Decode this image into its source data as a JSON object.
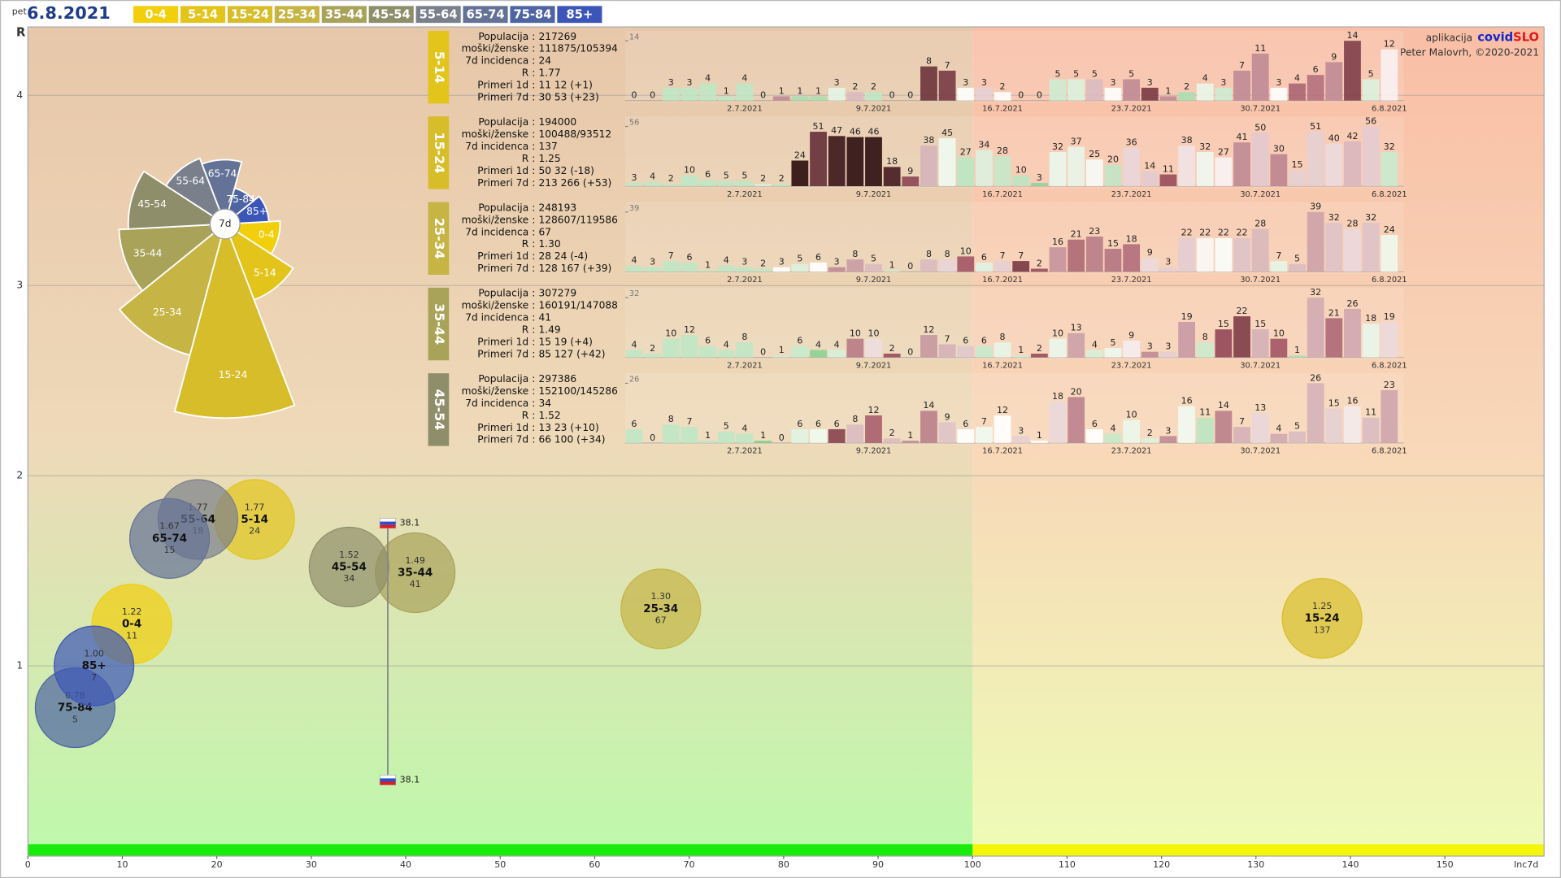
{
  "header": {
    "weekday": "pet",
    "date": "6.8.2021",
    "legend": [
      {
        "name": "0-4",
        "color": "#f2cf0a"
      },
      {
        "name": "5-14",
        "color": "#e3c41a"
      },
      {
        "name": "15-24",
        "color": "#d8bd2a"
      },
      {
        "name": "25-34",
        "color": "#c6b444"
      },
      {
        "name": "35-44",
        "color": "#a9a35a"
      },
      {
        "name": "45-54",
        "color": "#8f8e6a"
      },
      {
        "name": "55-64",
        "color": "#7a7f8c"
      },
      {
        "name": "65-74",
        "color": "#637296"
      },
      {
        "name": "75-84",
        "color": "#4f64a3"
      },
      {
        "name": "85+",
        "color": "#3c55b8"
      }
    ]
  },
  "credit": {
    "prefix": "aplikacija",
    "brand_1": "covid",
    "brand_2": "SLO",
    "author": "Peter Malovrh, ©2020-2021"
  },
  "stat_separator": ":",
  "chart_data": [
    {
      "type": "bubble",
      "xlabel": "Inc7d",
      "ylabel": "R",
      "xlim": [
        0,
        160.5
      ],
      "ylim": [
        0,
        4.36
      ],
      "xticks": [
        0,
        10,
        20,
        30,
        40,
        50,
        60,
        70,
        80,
        90,
        100,
        110,
        120,
        130,
        140,
        150
      ],
      "yticks": [
        1,
        2,
        3,
        4
      ],
      "grid": true,
      "categories": [
        "0-4",
        "5-14",
        "15-24",
        "25-34",
        "35-44",
        "45-54",
        "55-64",
        "65-74",
        "75-84",
        "85+"
      ],
      "x": [
        11,
        24,
        137,
        67,
        41,
        34,
        18,
        15,
        5,
        7
      ],
      "values": [
        1.22,
        1.77,
        1.25,
        1.3,
        1.49,
        1.52,
        1.77,
        1.67,
        0.78,
        1.0
      ],
      "value_labels": [
        "1.22",
        "1.77",
        "1.25",
        "1.30",
        "1.49",
        "1.52",
        "1.77",
        "1.67",
        "0.78",
        "1.00"
      ],
      "colors": [
        "#f2cf0a",
        "#e3c41a",
        "#d8bd2a",
        "#c6b444",
        "#a9a35a",
        "#8f8e6a",
        "#7a7f8c",
        "#637296",
        "#4f64a3",
        "#3c55b8"
      ],
      "reference": {
        "x": 38.1,
        "y": [
          0.4,
          1.75
        ]
      }
    },
    {
      "type": "rose",
      "center_label": "7d",
      "categories": [
        "0-4",
        "5-14",
        "15-24",
        "25-34",
        "35-44",
        "45-54",
        "55-64",
        "65-74",
        "75-84",
        "85+"
      ],
      "values": [
        11,
        24,
        137,
        67,
        41,
        34,
        18,
        15,
        5,
        7
      ],
      "colors": [
        "#f2cf0a",
        "#e3c41a",
        "#d8bd2a",
        "#c6b444",
        "#a9a35a",
        "#8f8e6a",
        "#7a7f8c",
        "#637296",
        "#4f64a3",
        "#3c55b8"
      ]
    },
    {
      "type": "bar",
      "title": "5-14",
      "color": "#e3c41a",
      "ylim": [
        0,
        14
      ],
      "yticks": [
        14
      ],
      "stats": [
        {
          "label": "Populacija",
          "value": "217269"
        },
        {
          "label": "moški/ženske",
          "value": "111875/105394"
        },
        {
          "label": "7d incidenca",
          "value": "24"
        },
        {
          "label": "R",
          "value": "1.77"
        },
        {
          "label": "Primeri 1d",
          "value": "11 12 (+1)"
        },
        {
          "label": "Primeri 7d",
          "value": "30 53 (+23)"
        }
      ],
      "categories": [
        null,
        null,
        null,
        null,
        null,
        null,
        "2.7.2021",
        null,
        null,
        null,
        null,
        null,
        null,
        "9.7.2021",
        null,
        null,
        null,
        null,
        null,
        null,
        "16.7.2021",
        null,
        null,
        null,
        null,
        null,
        null,
        "23.7.2021",
        null,
        null,
        null,
        null,
        null,
        null,
        "30.7.2021",
        null,
        null,
        null,
        null,
        null,
        null,
        "6.8.2021"
      ],
      "values": [
        0,
        0,
        3,
        3,
        4,
        1,
        4,
        0,
        1,
        1,
        1,
        3,
        2,
        2,
        0,
        0,
        8,
        7,
        3,
        3,
        2,
        0,
        0,
        5,
        5,
        5,
        3,
        5,
        3,
        1,
        2,
        4,
        3,
        7,
        11,
        3,
        4,
        6,
        9,
        14,
        5,
        12
      ]
    },
    {
      "type": "bar",
      "title": "15-24",
      "color": "#d8bd2a",
      "ylim": [
        0,
        56
      ],
      "yticks": [
        56
      ],
      "stats": [
        {
          "label": "Populacija",
          "value": "194000"
        },
        {
          "label": "moški/ženske",
          "value": "100488/93512"
        },
        {
          "label": "7d incidenca",
          "value": "137"
        },
        {
          "label": "R",
          "value": "1.25"
        },
        {
          "label": "Primeri 1d",
          "value": "50 32 (-18)"
        },
        {
          "label": "Primeri 7d",
          "value": "213 266 (+53)"
        }
      ],
      "categories": [
        null,
        null,
        null,
        null,
        null,
        null,
        "2.7.2021",
        null,
        null,
        null,
        null,
        null,
        null,
        "9.7.2021",
        null,
        null,
        null,
        null,
        null,
        null,
        "16.7.2021",
        null,
        null,
        null,
        null,
        null,
        null,
        "23.7.2021",
        null,
        null,
        null,
        null,
        null,
        null,
        "30.7.2021",
        null,
        null,
        null,
        null,
        null,
        null,
        "6.8.2021"
      ],
      "values": [
        3,
        4,
        2,
        10,
        6,
        5,
        5,
        2,
        2,
        24,
        51,
        47,
        46,
        46,
        18,
        9,
        38,
        45,
        27,
        34,
        28,
        10,
        3,
        32,
        37,
        25,
        20,
        36,
        14,
        11,
        38,
        32,
        27,
        41,
        50,
        30,
        15,
        51,
        40,
        42,
        56,
        32
      ]
    },
    {
      "type": "bar",
      "title": "25-34",
      "color": "#c6b444",
      "ylim": [
        0,
        39
      ],
      "yticks": [
        39
      ],
      "stats": [
        {
          "label": "Populacija",
          "value": "248193"
        },
        {
          "label": "moški/ženske",
          "value": "128607/119586"
        },
        {
          "label": "7d incidenca",
          "value": "67"
        },
        {
          "label": "R",
          "value": "1.30"
        },
        {
          "label": "Primeri 1d",
          "value": "28 24 (-4)"
        },
        {
          "label": "Primeri 7d",
          "value": "128 167 (+39)"
        }
      ],
      "categories": [
        null,
        null,
        null,
        null,
        null,
        null,
        "2.7.2021",
        null,
        null,
        null,
        null,
        null,
        null,
        "9.7.2021",
        null,
        null,
        null,
        null,
        null,
        null,
        "16.7.2021",
        null,
        null,
        null,
        null,
        null,
        null,
        "23.7.2021",
        null,
        null,
        null,
        null,
        null,
        null,
        "30.7.2021",
        null,
        null,
        null,
        null,
        null,
        null,
        "6.8.2021"
      ],
      "values": [
        4,
        3,
        7,
        6,
        1,
        4,
        3,
        2,
        3,
        5,
        6,
        3,
        8,
        5,
        1,
        0,
        8,
        8,
        10,
        6,
        7,
        7,
        2,
        16,
        21,
        23,
        15,
        18,
        9,
        3,
        22,
        22,
        22,
        22,
        28,
        7,
        5,
        39,
        32,
        28,
        32,
        24
      ]
    },
    {
      "type": "bar",
      "title": "35-44",
      "color": "#a9a35a",
      "ylim": [
        0,
        32
      ],
      "yticks": [
        32
      ],
      "stats": [
        {
          "label": "Populacija",
          "value": "307279"
        },
        {
          "label": "moški/ženske",
          "value": "160191/147088"
        },
        {
          "label": "7d incidenca",
          "value": "41"
        },
        {
          "label": "R",
          "value": "1.49"
        },
        {
          "label": "Primeri 1d",
          "value": "15 19 (+4)"
        },
        {
          "label": "Primeri 7d",
          "value": "85 127 (+42)"
        }
      ],
      "categories": [
        null,
        null,
        null,
        null,
        null,
        null,
        "2.7.2021",
        null,
        null,
        null,
        null,
        null,
        null,
        "9.7.2021",
        null,
        null,
        null,
        null,
        null,
        null,
        "16.7.2021",
        null,
        null,
        null,
        null,
        null,
        null,
        "23.7.2021",
        null,
        null,
        null,
        null,
        null,
        null,
        "30.7.2021",
        null,
        null,
        null,
        null,
        null,
        null,
        "6.8.2021"
      ],
      "values": [
        4,
        2,
        10,
        12,
        6,
        4,
        8,
        0,
        1,
        6,
        4,
        4,
        10,
        10,
        2,
        0,
        12,
        7,
        6,
        6,
        8,
        1,
        2,
        10,
        13,
        4,
        5,
        9,
        3,
        3,
        19,
        8,
        15,
        22,
        15,
        10,
        1,
        32,
        21,
        26,
        18,
        19
      ]
    },
    {
      "type": "bar",
      "title": "45-54",
      "color": "#8f8e6a",
      "ylim": [
        0,
        26
      ],
      "yticks": [
        26
      ],
      "stats": [
        {
          "label": "Populacija",
          "value": "297386"
        },
        {
          "label": "moški/ženske",
          "value": "152100/145286"
        },
        {
          "label": "7d incidenca",
          "value": "34"
        },
        {
          "label": "R",
          "value": "1.52"
        },
        {
          "label": "Primeri 1d",
          "value": "13 23 (+10)"
        },
        {
          "label": "Primeri 7d",
          "value": "66 100 (+34)"
        }
      ],
      "categories": [
        null,
        null,
        null,
        null,
        null,
        null,
        "2.7.2021",
        null,
        null,
        null,
        null,
        null,
        null,
        "9.7.2021",
        null,
        null,
        null,
        null,
        null,
        null,
        "16.7.2021",
        null,
        null,
        null,
        null,
        null,
        null,
        "23.7.2021",
        null,
        null,
        null,
        null,
        null,
        null,
        "30.7.2021",
        null,
        null,
        null,
        null,
        null,
        null,
        "6.8.2021"
      ],
      "values": [
        6,
        0,
        8,
        7,
        1,
        5,
        4,
        1,
        0,
        6,
        6,
        6,
        8,
        12,
        2,
        1,
        14,
        9,
        6,
        7,
        12,
        3,
        1,
        18,
        20,
        6,
        4,
        10,
        2,
        3,
        16,
        11,
        14,
        7,
        13,
        4,
        5,
        26,
        15,
        16,
        11,
        23
      ]
    }
  ]
}
